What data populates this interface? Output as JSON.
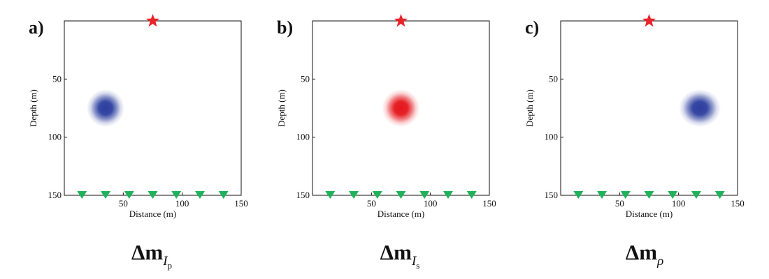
{
  "chart_data": [
    {
      "type": "heatmap",
      "panel": "a)",
      "caption": {
        "base": "Δm",
        "sub": "I",
        "subsub": "p"
      },
      "xlabel": "Distance (m)",
      "ylabel": "Depth (m)",
      "xlim": [
        0,
        150
      ],
      "ylim": [
        0,
        150
      ],
      "y_inverted": true,
      "x_ticks": [
        50,
        100,
        150
      ],
      "y_ticks": [
        50,
        100,
        150
      ],
      "anomaly": {
        "x": 35,
        "y": 75,
        "color": "#2c3f9e",
        "sign": "negative"
      },
      "source": {
        "x": 75,
        "y": 0,
        "color": "#e8242a",
        "marker": "star"
      },
      "receivers": {
        "x": [
          15,
          35,
          55,
          75,
          95,
          115,
          135
        ],
        "y": 150,
        "color": "#1fb25a",
        "marker": "triangle-down"
      }
    },
    {
      "type": "heatmap",
      "panel": "b)",
      "caption": {
        "base": "Δm",
        "sub": "I",
        "subsub": "s"
      },
      "xlabel": "Distance (m)",
      "ylabel": "Depth (m)",
      "xlim": [
        0,
        150
      ],
      "ylim": [
        0,
        150
      ],
      "y_inverted": true,
      "x_ticks": [
        50,
        100,
        150
      ],
      "y_ticks": [
        50,
        100,
        150
      ],
      "anomaly": {
        "x": 75,
        "y": 75,
        "color": "#e4161d",
        "sign": "positive"
      },
      "source": {
        "x": 75,
        "y": 0,
        "color": "#e8242a",
        "marker": "star"
      },
      "receivers": {
        "x": [
          15,
          35,
          55,
          75,
          95,
          115,
          135
        ],
        "y": 150,
        "color": "#1fb25a",
        "marker": "triangle-down"
      }
    },
    {
      "type": "heatmap",
      "panel": "c)",
      "caption": {
        "base": "Δm",
        "sub": "ρ",
        "subsub": ""
      },
      "xlabel": "Distance (m)",
      "ylabel": "Depth (m)",
      "xlim": [
        0,
        150
      ],
      "ylim": [
        0,
        150
      ],
      "y_inverted": true,
      "x_ticks": [
        50,
        100,
        150
      ],
      "y_ticks": [
        50,
        100,
        150
      ],
      "anomaly": {
        "x": 118,
        "y": 75,
        "color": "#2c3f9e",
        "sign": "negative"
      },
      "source": {
        "x": 75,
        "y": 0,
        "color": "#e8242a",
        "marker": "star"
      },
      "receivers": {
        "x": [
          15,
          35,
          55,
          75,
          95,
          115,
          135
        ],
        "y": 150,
        "color": "#1fb25a",
        "marker": "triangle-down"
      }
    }
  ]
}
